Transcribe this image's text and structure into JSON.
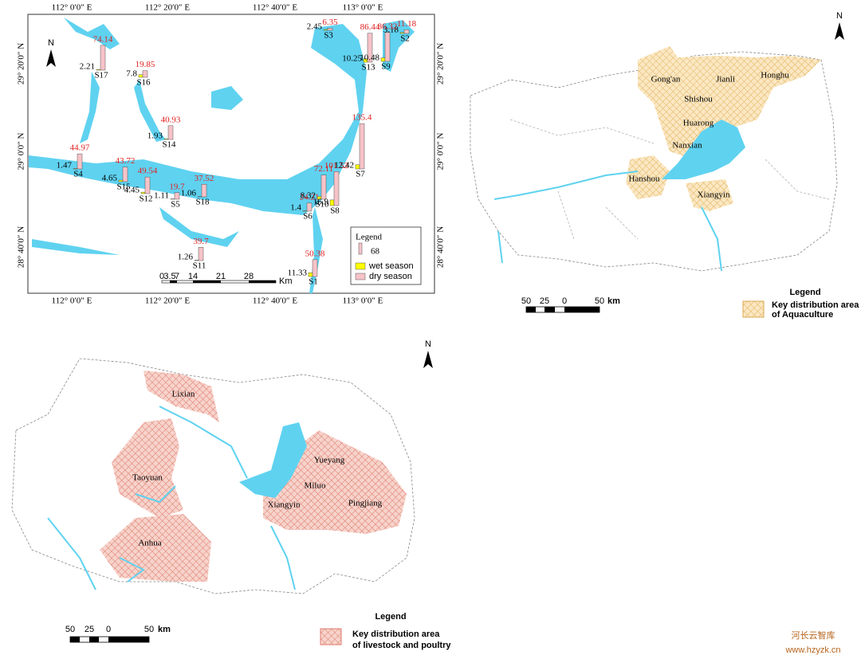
{
  "map1": {
    "lon_labels_top": [
      "112° 0′0″ E",
      "112° 20′0″ E",
      "112° 40′0″ E",
      "113° 0′0″ E"
    ],
    "lon_labels_bottom": [
      "112° 0′0″ E",
      "112° 20′0″ E",
      "112° 40′0″ E",
      "113° 0′0″ E"
    ],
    "lat_labels_left": [
      "29° 20′0″ N",
      "29° 0′0″ N",
      "28° 40′0″ N"
    ],
    "lat_labels_right": [
      "29° 20′0″ N",
      "29° 0′0″ N",
      "28° 40′0″ N"
    ],
    "north": "N",
    "stations": [
      {
        "name": "S17",
        "wet": 2.21,
        "dry": 74.14
      },
      {
        "name": "S16",
        "wet": 7.8,
        "dry": 19.85
      },
      {
        "name": "S3",
        "wet": 2.45,
        "dry": 6.35
      },
      {
        "name": "S2",
        "wet": 3.18,
        "dry": 11.18
      },
      {
        "name": "S13",
        "wet": 10.25,
        "dry": 86.44
      },
      {
        "name": "S9",
        "wet": 10.48,
        "dry": 86.32
      },
      {
        "name": "S14",
        "wet": 1.93,
        "dry": 40.93
      },
      {
        "name": "S4",
        "wet": 1.47,
        "dry": 44.97
      },
      {
        "name": "S15",
        "wet": 4.65,
        "dry": 43.72
      },
      {
        "name": "S12",
        "wet": 4.45,
        "dry": 49.54
      },
      {
        "name": "S5",
        "wet": 1.11,
        "dry": 19.7
      },
      {
        "name": "S18",
        "wet": 1.06,
        "dry": 37.52
      },
      {
        "name": "S6",
        "wet": 1.4,
        "dry": 24.21
      },
      {
        "name": "S10",
        "wet": 8.32,
        "dry": 72.11
      },
      {
        "name": "S8",
        "wet": 16.9,
        "dry": 101.52
      },
      {
        "name": "S7",
        "wet": 12.42,
        "dry": 135.4
      },
      {
        "name": "S11",
        "wet": 1.26,
        "dry": 39.7
      },
      {
        "name": "S1",
        "wet": 11.33,
        "dry": 50.38
      }
    ],
    "legend": {
      "title": "Legend",
      "sample": 68,
      "wet": "wet season",
      "dry": "dry season"
    },
    "scalebar": [
      0,
      3.5,
      7,
      14,
      21,
      28
    ],
    "scalebar_unit": "Km"
  },
  "map2": {
    "north": "N",
    "places": [
      "Gong'an",
      "Jianli",
      "Honghu",
      "Shishou",
      "Huarong",
      "Nanxian",
      "Hanshou",
      "Xiangyin"
    ],
    "legend": {
      "title": "Legend",
      "item_line1": "Key distribution area",
      "item_line2": "of Aquaculture"
    },
    "scalebar": [
      50,
      25,
      0,
      50
    ],
    "scalebar_unit": "km"
  },
  "map3": {
    "north": "N",
    "places": [
      "Lixian",
      "Taoyuan",
      "Anhua",
      "Yueyang",
      "Miluo",
      "Pingjiang",
      "Xiangyin"
    ],
    "legend": {
      "title": "Legend",
      "item_line1": "Key distribution area",
      "item_line2": "of livestock and poultry"
    },
    "scalebar": [
      50,
      25,
      0,
      50
    ],
    "scalebar_unit": "km"
  },
  "watermark": {
    "name": "河长云智库",
    "url": "www.hzyzk.cn"
  }
}
